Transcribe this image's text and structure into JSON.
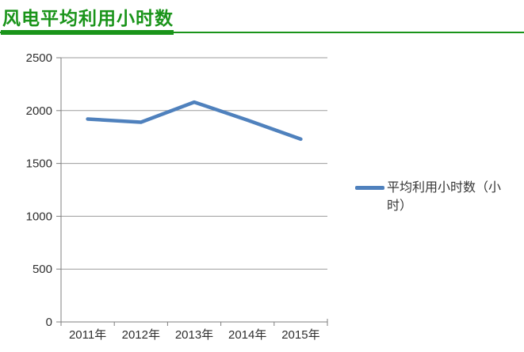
{
  "header": {
    "title": "风电平均利用小时数"
  },
  "chart_data": {
    "type": "line",
    "title": "风电平均利用小时数",
    "categories": [
      "2011年",
      "2012年",
      "2013年",
      "2014年",
      "2015年"
    ],
    "series": [
      {
        "name": "平均利用小时数（小时）",
        "values": [
          1920,
          1890,
          2080,
          1910,
          1730
        ],
        "color": "#4f81bd"
      }
    ],
    "xlabel": "",
    "ylabel": "",
    "ylim": [
      0,
      2500
    ],
    "yticks": [
      0,
      500,
      1000,
      1500,
      2000,
      2500
    ],
    "grid": true,
    "legend_position": "right"
  },
  "legend": {
    "label": "平均利用小时数（小时）",
    "swatch_color": "#4f81bd"
  },
  "colors": {
    "accent_green": "#1a941a",
    "series_blue": "#4f81bd",
    "gridline": "#9b9b9b",
    "axis": "#7f7f7f",
    "tick_text": "#2e2e2e"
  }
}
